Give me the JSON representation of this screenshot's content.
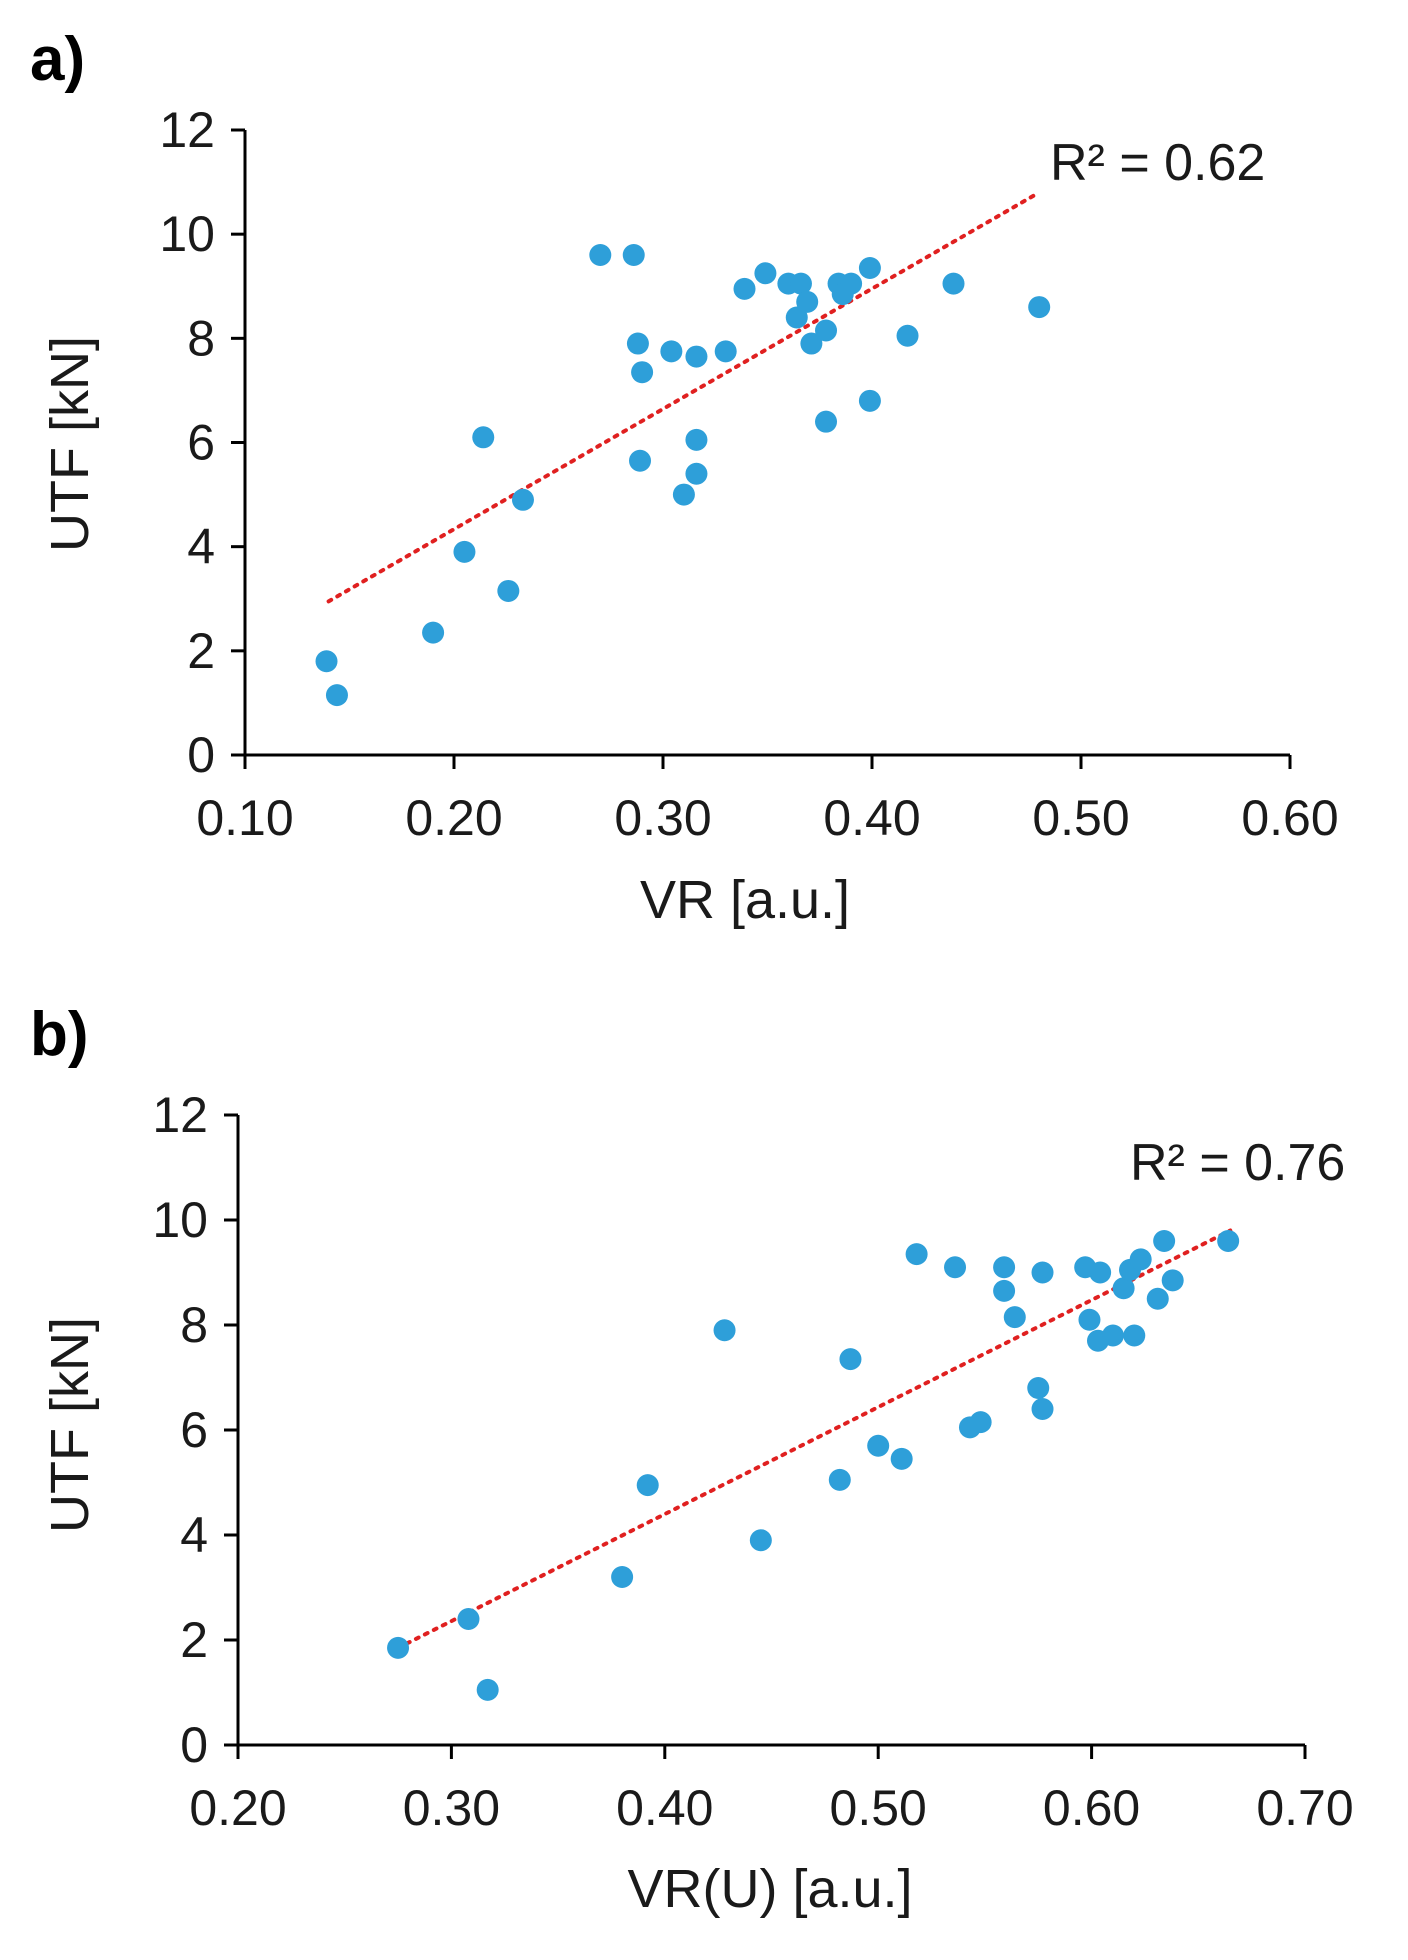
{
  "colors": {
    "points": "#2e9fd9",
    "trendline": "#e02020",
    "axes": "#000000"
  },
  "chart_data": [
    {
      "type": "scatter",
      "panel_label": "a)",
      "xlabel": "VR [a.u.]",
      "ylabel": "UTF [kN]",
      "xlim": [
        0.1,
        0.6
      ],
      "ylim": [
        0,
        12
      ],
      "xticks": [
        "0.10",
        "0.20",
        "0.30",
        "0.40",
        "0.50",
        "0.60"
      ],
      "yticks": [
        "0",
        "2",
        "4",
        "6",
        "8",
        "10",
        "12"
      ],
      "grid": false,
      "annotation": "R² = 0.62",
      "trendline": {
        "x": [
          0.14,
          0.48
        ],
        "y": [
          2.95,
          10.8
        ]
      },
      "points": [
        {
          "x": 0.139,
          "y": 1.8
        },
        {
          "x": 0.144,
          "y": 1.15
        },
        {
          "x": 0.19,
          "y": 2.35
        },
        {
          "x": 0.205,
          "y": 3.9
        },
        {
          "x": 0.214,
          "y": 6.1
        },
        {
          "x": 0.226,
          "y": 3.15
        },
        {
          "x": 0.233,
          "y": 4.9
        },
        {
          "x": 0.27,
          "y": 9.6
        },
        {
          "x": 0.286,
          "y": 9.6
        },
        {
          "x": 0.288,
          "y": 7.9
        },
        {
          "x": 0.289,
          "y": 5.65
        },
        {
          "x": 0.29,
          "y": 7.35
        },
        {
          "x": 0.304,
          "y": 7.75
        },
        {
          "x": 0.31,
          "y": 5.0
        },
        {
          "x": 0.316,
          "y": 7.65
        },
        {
          "x": 0.316,
          "y": 6.05
        },
        {
          "x": 0.316,
          "y": 5.4
        },
        {
          "x": 0.33,
          "y": 7.75
        },
        {
          "x": 0.339,
          "y": 8.95
        },
        {
          "x": 0.349,
          "y": 9.25
        },
        {
          "x": 0.36,
          "y": 9.05
        },
        {
          "x": 0.366,
          "y": 9.05
        },
        {
          "x": 0.364,
          "y": 8.4
        },
        {
          "x": 0.369,
          "y": 8.7
        },
        {
          "x": 0.371,
          "y": 7.9
        },
        {
          "x": 0.378,
          "y": 8.15
        },
        {
          "x": 0.378,
          "y": 6.4
        },
        {
          "x": 0.384,
          "y": 9.05
        },
        {
          "x": 0.386,
          "y": 8.85
        },
        {
          "x": 0.39,
          "y": 9.05
        },
        {
          "x": 0.399,
          "y": 9.35
        },
        {
          "x": 0.399,
          "y": 6.8
        },
        {
          "x": 0.417,
          "y": 8.05
        },
        {
          "x": 0.439,
          "y": 9.05
        },
        {
          "x": 0.48,
          "y": 8.6
        }
      ]
    },
    {
      "type": "scatter",
      "panel_label": "b)",
      "xlabel": "VR(U) [a.u.]",
      "ylabel": "UTF [kN]",
      "xlim": [
        0.2,
        0.7
      ],
      "ylim": [
        0,
        12
      ],
      "xticks": [
        "0.20",
        "0.30",
        "0.40",
        "0.50",
        "0.60",
        "0.70"
      ],
      "yticks": [
        "0",
        "2",
        "4",
        "6",
        "8",
        "10",
        "12"
      ],
      "grid": false,
      "annotation": "R² = 0.76",
      "trendline": {
        "x": [
          0.275,
          0.665
        ],
        "y": [
          1.85,
          9.8
        ]
      },
      "points": [
        {
          "x": 0.275,
          "y": 1.85
        },
        {
          "x": 0.308,
          "y": 2.4
        },
        {
          "x": 0.317,
          "y": 1.05
        },
        {
          "x": 0.38,
          "y": 3.2
        },
        {
          "x": 0.392,
          "y": 4.95
        },
        {
          "x": 0.428,
          "y": 7.9
        },
        {
          "x": 0.445,
          "y": 3.9
        },
        {
          "x": 0.482,
          "y": 5.05
        },
        {
          "x": 0.487,
          "y": 7.35
        },
        {
          "x": 0.5,
          "y": 5.7
        },
        {
          "x": 0.511,
          "y": 5.45
        },
        {
          "x": 0.518,
          "y": 9.35
        },
        {
          "x": 0.536,
          "y": 9.1
        },
        {
          "x": 0.543,
          "y": 6.05
        },
        {
          "x": 0.548,
          "y": 6.15
        },
        {
          "x": 0.559,
          "y": 9.1
        },
        {
          "x": 0.559,
          "y": 8.65
        },
        {
          "x": 0.564,
          "y": 8.15
        },
        {
          "x": 0.575,
          "y": 6.8
        },
        {
          "x": 0.577,
          "y": 6.4
        },
        {
          "x": 0.577,
          "y": 9.0
        },
        {
          "x": 0.597,
          "y": 9.1
        },
        {
          "x": 0.599,
          "y": 8.1
        },
        {
          "x": 0.603,
          "y": 7.7
        },
        {
          "x": 0.604,
          "y": 9.0
        },
        {
          "x": 0.61,
          "y": 7.8
        },
        {
          "x": 0.615,
          "y": 8.7
        },
        {
          "x": 0.618,
          "y": 9.05
        },
        {
          "x": 0.62,
          "y": 7.8
        },
        {
          "x": 0.623,
          "y": 9.25
        },
        {
          "x": 0.631,
          "y": 8.5
        },
        {
          "x": 0.634,
          "y": 9.6
        },
        {
          "x": 0.638,
          "y": 8.85
        },
        {
          "x": 0.664,
          "y": 9.6
        }
      ]
    }
  ]
}
